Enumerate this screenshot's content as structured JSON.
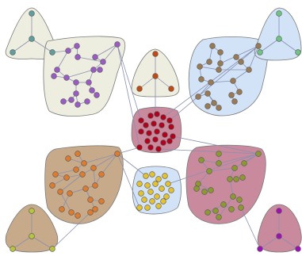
{
  "colors": {
    "background": "#ffffff",
    "edge": "#8a8fb0",
    "hull_stroke": "#7a7a7a",
    "node_stroke": "#555555"
  },
  "clusters": [
    {
      "name": "top-left-teal",
      "fill": "#eeeee0",
      "node": "#5f9e9e"
    },
    {
      "name": "left-purple",
      "fill": "#eeeee0",
      "node": "#9a5bc7"
    },
    {
      "name": "top-center-orange",
      "fill": "#eeeee0",
      "node": "#c24a12"
    },
    {
      "name": "right-brown",
      "fill": "#d2e3f7",
      "node": "#9a7a52"
    },
    {
      "name": "top-right-green",
      "fill": "#d2e3f7",
      "node": "#6ec482"
    },
    {
      "name": "center-red",
      "fill": "#c98a9e",
      "node": "#b3001c"
    },
    {
      "name": "left-orange",
      "fill": "#c7aa8a",
      "node": "#e07a2c"
    },
    {
      "name": "center-yellow",
      "fill": "#d2e3f7",
      "node": "#e5c22a"
    },
    {
      "name": "right-olive",
      "fill": "#c98a9e",
      "node": "#8a9a2c"
    },
    {
      "name": "bottom-left-lime",
      "fill": "#c7aa8a",
      "node": "#b8c43a"
    },
    {
      "name": "bottom-right-magenta",
      "fill": "#c98a9e",
      "node": "#a010b8"
    }
  ]
}
